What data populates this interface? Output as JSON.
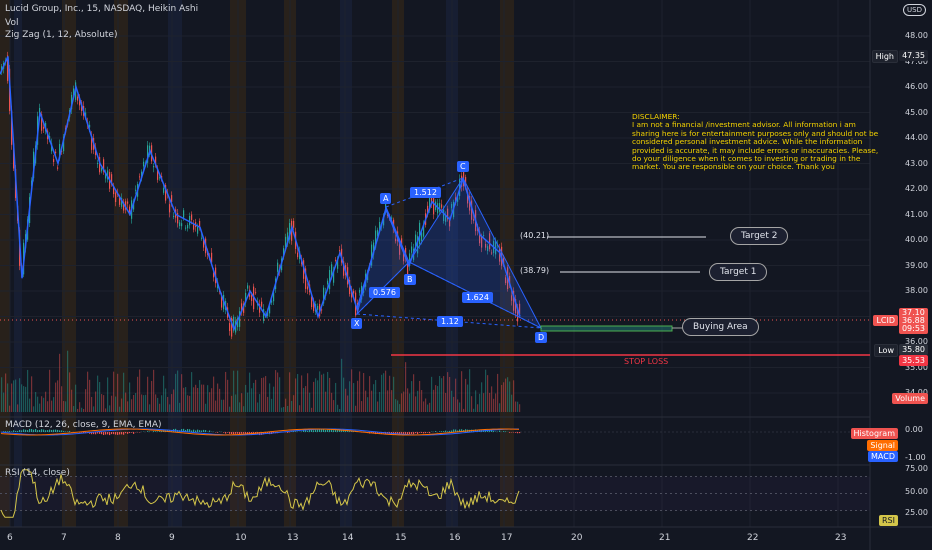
{
  "header": {
    "title": "Lucid Group, Inc., 15, NASDAQ, Heikin Ashi",
    "vol_label": "Vol",
    "zigzag_label": "Zig Zag (1, 12, Absolute)",
    "currency": "USD"
  },
  "y_axis": {
    "ticks": [
      "48.00",
      "47.00",
      "46.00",
      "45.00",
      "44.00",
      "43.00",
      "42.00",
      "41.00",
      "40.00",
      "39.00",
      "38.00",
      "37.00",
      "36.00",
      "35.00",
      "34.00"
    ]
  },
  "x_axis": {
    "ticks": [
      "6",
      "7",
      "8",
      "9",
      "10",
      "13",
      "14",
      "15",
      "16",
      "17",
      "20",
      "21",
      "22",
      "23"
    ]
  },
  "price_tags": {
    "high_label": "High",
    "high_value": "47.35",
    "symbol": "LCID",
    "last_value": "37.10",
    "last_value2": "36.88",
    "countdown": "09:53",
    "low_label": "Low",
    "low_value": "35.80",
    "stop_value": "35.53",
    "volume_label": "Volume"
  },
  "pattern": {
    "points": {
      "X": "X",
      "A": "A",
      "B": "B",
      "C": "C",
      "D": "D"
    },
    "ratios": {
      "xb": "0.576",
      "ac": "1.512",
      "bd": "1.624",
      "xd": "1.12"
    }
  },
  "targets": {
    "target2_price": "(40.21)",
    "target2_label": "Target 2",
    "target1_price": "(38.79)",
    "target1_label": "Target 1",
    "buying_label": "Buying Area",
    "stop_loss_label": "STOP LOSS"
  },
  "disclaimer": "DISCLAIMER:\nI am not a financial /investment advisor. All information i am sharing here is for entertainment purposes only and should not be considered personal investment advice. While the information provided is accurate, it may include errors or inaccuracies. Please, do your diligence when it comes to investing or trading in the market. You are responsible on your choice. Thank you",
  "macd": {
    "label": "MACD (12, 26, close, 9, EMA, EMA)",
    "ticks": [
      "0.00",
      "-1.00"
    ],
    "histogram_label": "Histogram",
    "signal_label": "Signal",
    "macd_label": "MACD"
  },
  "rsi": {
    "label": "RSI (14, close)",
    "ticks": [
      "75.00",
      "50.00",
      "25.00"
    ],
    "tag": "RSI"
  },
  "colors": {
    "background": "#131722",
    "pattern": "#2962ff",
    "up": "#26a69a",
    "down": "#ef5350",
    "stop": "#f23645",
    "rsi": "#d4c64a",
    "disclaimer": "#f5d300"
  }
}
